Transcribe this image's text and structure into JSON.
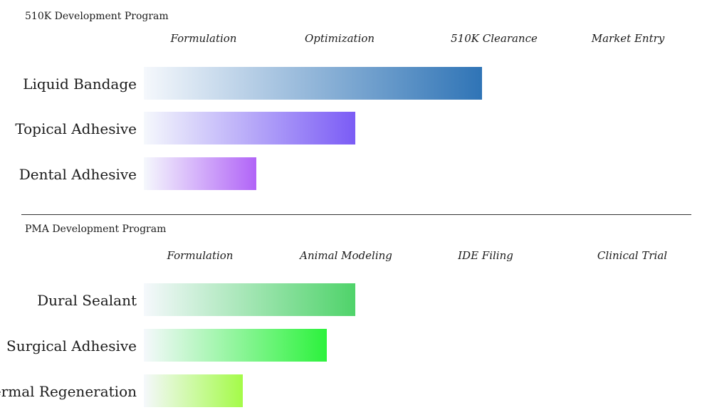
{
  "chart_data": [
    {
      "type": "bar",
      "orientation": "horizontal",
      "title": "510K Development Program",
      "stages": [
        "Formulation",
        "Optimization",
        "510K Clearance",
        "Market Entry"
      ],
      "categories": [
        "Liquid Bandage",
        "Topical Adhesive",
        "Dental Adhesive"
      ],
      "values": [
        2.4,
        1.5,
        0.8
      ],
      "xlim": [
        0,
        4
      ],
      "colors": [
        "#2f74b6",
        "#7b5cf5",
        "#b164f7"
      ],
      "grid": false
    },
    {
      "type": "bar",
      "orientation": "horizontal",
      "title": "PMA Development Program",
      "stages": [
        "Formulation",
        "Animal Modeling",
        "IDE Filing",
        "Clinical Trial"
      ],
      "categories": [
        "Dural Sealant",
        "Surgical Adhesive",
        "Dermal Regeneration"
      ],
      "values": [
        1.5,
        1.3,
        0.7
      ],
      "xlim": [
        0,
        4
      ],
      "colors": [
        "#4fd36a",
        "#2cf23c",
        "#a4fb48"
      ],
      "grid": false
    }
  ]
}
